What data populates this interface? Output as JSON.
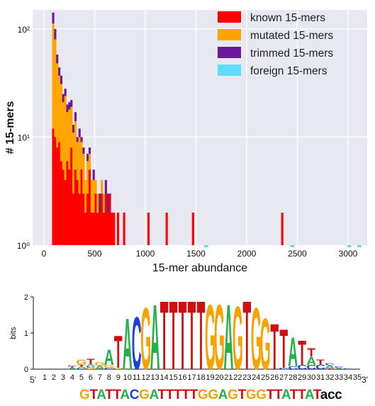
{
  "chart_data": [
    {
      "type": "bar",
      "subtype": "stacked-histogram",
      "title": "",
      "xlabel": "15-mer abundance",
      "ylabel": "# 15-mers",
      "yscale": "log",
      "xlim": [
        0,
        3200
      ],
      "ylim": [
        1,
        150
      ],
      "xticks": [
        "0",
        "500",
        "1000",
        "1500",
        "2000",
        "2500",
        "3000"
      ],
      "yticks": [
        "10⁰",
        "10¹",
        "10²"
      ],
      "grid": true,
      "legend_position": "top-right",
      "bin_width": 20,
      "series": [
        {
          "name": "known 15-mers",
          "color": "#ff0000"
        },
        {
          "name": "mutated  15-mers",
          "color": "#ffa500"
        },
        {
          "name": "trimmed  15-mers",
          "color": "#6a1b9a"
        },
        {
          "name": "foreign 15-mers",
          "color": "#5fdcff"
        }
      ],
      "bins": [
        {
          "x": 90,
          "known": 12,
          "mutated": 100,
          "trimmed": 30
        },
        {
          "x": 110,
          "known": 10,
          "mutated": 70,
          "trimmed": 20
        },
        {
          "x": 130,
          "known": 8,
          "mutated": 40,
          "trimmed": 10
        },
        {
          "x": 150,
          "known": 9,
          "mutated": 28,
          "trimmed": 7
        },
        {
          "x": 170,
          "known": 6,
          "mutated": 25,
          "trimmed": 6
        },
        {
          "x": 190,
          "known": 5,
          "mutated": 16,
          "trimmed": 4
        },
        {
          "x": 210,
          "known": 4,
          "mutated": 20,
          "trimmed": 4
        },
        {
          "x": 230,
          "known": 6,
          "mutated": 11,
          "trimmed": 3
        },
        {
          "x": 250,
          "known": 5,
          "mutated": 13,
          "trimmed": 3
        },
        {
          "x": 270,
          "known": 8,
          "mutated": 11,
          "trimmed": 3
        },
        {
          "x": 290,
          "known": 3,
          "mutated": 8,
          "trimmed": 2
        },
        {
          "x": 310,
          "known": 5,
          "mutated": 9,
          "trimmed": 3
        },
        {
          "x": 330,
          "known": 4,
          "mutated": 5,
          "trimmed": 1
        },
        {
          "x": 350,
          "known": 3,
          "mutated": 7,
          "trimmed": 2
        },
        {
          "x": 370,
          "known": 5,
          "mutated": 4,
          "trimmed": 1
        },
        {
          "x": 390,
          "known": 3,
          "mutated": 4,
          "trimmed": 1
        },
        {
          "x": 410,
          "known": 2,
          "mutated": 2,
          "trimmed": 0
        },
        {
          "x": 430,
          "known": 3,
          "mutated": 3,
          "trimmed": 1
        },
        {
          "x": 450,
          "known": 5,
          "mutated": 2,
          "trimmed": 1
        },
        {
          "x": 470,
          "known": 2,
          "mutated": 2,
          "trimmed": 0
        },
        {
          "x": 490,
          "known": 2,
          "mutated": 2,
          "trimmed": 1
        },
        {
          "x": 510,
          "known": 3,
          "mutated": 1,
          "trimmed": 0
        },
        {
          "x": 530,
          "known": 2,
          "mutated": 1,
          "trimmed": 0
        },
        {
          "x": 550,
          "known": 2,
          "mutated": 0,
          "trimmed": 1
        },
        {
          "x": 570,
          "known": 3,
          "mutated": 1,
          "trimmed": 0
        },
        {
          "x": 590,
          "known": 2,
          "mutated": 1,
          "trimmed": 0
        },
        {
          "x": 610,
          "known": 3,
          "mutated": 0,
          "trimmed": 1
        },
        {
          "x": 630,
          "known": 2,
          "mutated": 0,
          "trimmed": 1
        },
        {
          "x": 650,
          "known": 3,
          "mutated": 0,
          "trimmed": 0
        },
        {
          "x": 670,
          "known": 2,
          "mutated": 0,
          "trimmed": 0
        },
        {
          "x": 690,
          "known": 2,
          "mutated": 0,
          "trimmed": 0
        },
        {
          "x": 730,
          "known": 2,
          "mutated": 0,
          "trimmed": 0
        },
        {
          "x": 790,
          "known": 2,
          "mutated": 0,
          "trimmed": 0
        },
        {
          "x": 870,
          "known": 1,
          "mutated": 0,
          "trimmed": 0
        },
        {
          "x": 950,
          "known": 1,
          "mutated": 0,
          "trimmed": 0
        },
        {
          "x": 1030,
          "known": 2,
          "mutated": 0,
          "trimmed": 0
        },
        {
          "x": 1090,
          "known": 1,
          "mutated": 0,
          "trimmed": 0
        },
        {
          "x": 1210,
          "known": 2,
          "mutated": 0,
          "trimmed": 0
        },
        {
          "x": 1290,
          "known": 1,
          "mutated": 0,
          "trimmed": 0
        },
        {
          "x": 1430,
          "known": 1,
          "mutated": 0,
          "trimmed": 0
        },
        {
          "x": 1470,
          "known": 2,
          "mutated": 0,
          "trimmed": 0
        },
        {
          "x": 1490,
          "known": 1,
          "mutated": 0,
          "trimmed": 0
        },
        {
          "x": 1730,
          "known": 1,
          "mutated": 0,
          "trimmed": 0
        },
        {
          "x": 1830,
          "known": 1,
          "mutated": 0,
          "trimmed": 0
        },
        {
          "x": 1990,
          "known": 1,
          "mutated": 0,
          "trimmed": 0
        },
        {
          "x": 2110,
          "known": 1,
          "mutated": 0,
          "trimmed": 0
        },
        {
          "x": 2350,
          "known": 2,
          "mutated": 0,
          "trimmed": 0
        },
        {
          "x": 2910,
          "known": 1,
          "mutated": 0,
          "trimmed": 0
        }
      ],
      "foreign_bins": [
        {
          "x": 1600,
          "value": 0.97
        },
        {
          "x": 2450,
          "value": 0.97
        },
        {
          "x": 3010,
          "value": 0.97
        },
        {
          "x": 3110,
          "value": 0.97
        }
      ]
    },
    {
      "type": "sequence-logo",
      "ylabel": "bits",
      "ylim": [
        0,
        2
      ],
      "yticks": [
        "0",
        "1",
        "2"
      ],
      "end5": "5′",
      "end3": "3′",
      "positions": [
        {
          "pos": "1",
          "letters": []
        },
        {
          "pos": "2",
          "letters": []
        },
        {
          "pos": "3",
          "letters": []
        },
        {
          "pos": "4",
          "letters": [
            [
              "A",
              0.04
            ],
            [
              "T",
              0.04
            ],
            [
              "C",
              0.03
            ]
          ]
        },
        {
          "pos": "5",
          "letters": [
            [
              "C",
              0.03
            ],
            [
              "A",
              0.04
            ],
            [
              "T",
              0.05
            ],
            [
              "G",
              0.16
            ]
          ]
        },
        {
          "pos": "6",
          "letters": [
            [
              "G",
              0.04
            ],
            [
              "C",
              0.04
            ],
            [
              "A",
              0.06
            ],
            [
              "T",
              0.16
            ]
          ]
        },
        {
          "pos": "7",
          "letters": [
            [
              "A",
              0.1
            ],
            [
              "G",
              0.1
            ]
          ]
        },
        {
          "pos": "8",
          "letters": [
            [
              "C",
              0.04
            ],
            [
              "G",
              0.08
            ],
            [
              "A",
              0.44
            ]
          ]
        },
        {
          "pos": "9",
          "letters": [
            [
              "G",
              0.04
            ],
            [
              "T",
              0.92
            ]
          ]
        },
        {
          "pos": "10",
          "letters": [
            [
              "A",
              1.45
            ]
          ]
        },
        {
          "pos": "11",
          "letters": [
            [
              "C",
              1.5
            ]
          ]
        },
        {
          "pos": "12",
          "letters": [
            [
              "G",
              1.75
            ]
          ]
        },
        {
          "pos": "13",
          "letters": [
            [
              "A",
              1.85
            ]
          ]
        },
        {
          "pos": "14",
          "letters": [
            [
              "T",
              1.95
            ]
          ]
        },
        {
          "pos": "15",
          "letters": [
            [
              "T",
              1.95
            ]
          ]
        },
        {
          "pos": "16",
          "letters": [
            [
              "T",
              1.95
            ]
          ]
        },
        {
          "pos": "17",
          "letters": [
            [
              "T",
              1.95
            ]
          ]
        },
        {
          "pos": "18",
          "letters": [
            [
              "T",
              1.95
            ]
          ]
        },
        {
          "pos": "19",
          "letters": [
            [
              "G",
              1.85
            ]
          ]
        },
        {
          "pos": "20",
          "letters": [
            [
              "G",
              1.85
            ]
          ]
        },
        {
          "pos": "21",
          "letters": [
            [
              "A",
              1.85
            ]
          ]
        },
        {
          "pos": "22",
          "letters": [
            [
              "G",
              1.8
            ]
          ]
        },
        {
          "pos": "23",
          "letters": [
            [
              "T",
              1.95
            ]
          ]
        },
        {
          "pos": "24",
          "letters": [
            [
              "G",
              1.75
            ]
          ]
        },
        {
          "pos": "25",
          "letters": [
            [
              "G",
              1.45
            ]
          ]
        },
        {
          "pos": "26",
          "letters": [
            [
              "T",
              1.3
            ]
          ]
        },
        {
          "pos": "27",
          "letters": [
            [
              "C",
              0.04
            ],
            [
              "T",
              1.1
            ]
          ]
        },
        {
          "pos": "28",
          "letters": [
            [
              "C",
              0.08
            ],
            [
              "A",
              0.82
            ]
          ]
        },
        {
          "pos": "29",
          "letters": [
            [
              "C",
              0.12
            ],
            [
              "T",
              0.7
            ]
          ]
        },
        {
          "pos": "30",
          "letters": [
            [
              "C",
              0.12
            ],
            [
              "A",
              0.22
            ],
            [
              "T",
              0.25
            ]
          ]
        },
        {
          "pos": "31",
          "letters": [
            [
              "C",
              0.13
            ],
            [
              "T",
              0.14
            ]
          ]
        },
        {
          "pos": "32",
          "letters": [
            [
              "T",
              0.03
            ],
            [
              "A",
              0.08
            ],
            [
              "C",
              0.06
            ]
          ]
        },
        {
          "pos": "33",
          "letters": [
            [
              "A",
              0.04
            ],
            [
              "C",
              0.04
            ]
          ]
        },
        {
          "pos": "34",
          "letters": [
            [
              "C",
              0.03
            ]
          ]
        },
        {
          "pos": "35",
          "letters": []
        }
      ],
      "letter_colors": {
        "A": "#22b14c",
        "C": "#1f3fdc",
        "G": "#f5a300",
        "T": "#d01010"
      },
      "sequence": {
        "upper": "GTATTACGATTTTTGGAGTGGTTATTAT",
        "lower": "acc",
        "lower_color": "#111111"
      }
    }
  ]
}
